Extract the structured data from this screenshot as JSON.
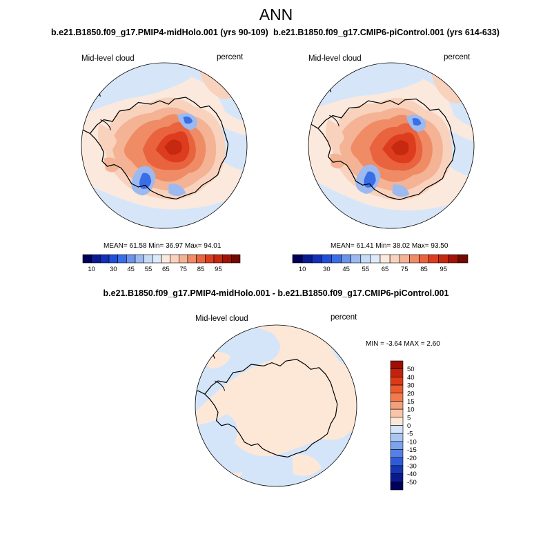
{
  "figure": {
    "title": "ANN",
    "panels": [
      {
        "case": "b.e21.B1850.f09_g17.PMIP4-midHolo.001 (yrs 90-109)",
        "variable": "Mid-level cloud",
        "units": "percent",
        "stats": {
          "mean_label": "MEAN=",
          "mean": "61.58",
          "min_label": "Min=",
          "min": "36.97",
          "max_label": "Max=",
          "max": "94.01"
        }
      },
      {
        "case": "b.e21.B1850.f09_g17.CMIP6-piControl.001 (yrs 614-633)",
        "variable": "Mid-level cloud",
        "units": "percent",
        "stats": {
          "mean_label": "MEAN=",
          "mean": "61.41",
          "min_label": "Min=",
          "min": "38.02",
          "max_label": "Max=",
          "max": "93.50"
        }
      }
    ],
    "difference": {
      "title": "b.e21.B1850.f09_g17.PMIP4-midHolo.001 - b.e21.B1850.f09_g17.CMIP6-piControl.001",
      "variable": "Mid-level cloud",
      "units": "percent",
      "stats": {
        "min_label": "MIN =",
        "min": "-3.64",
        "max_label": "MAX =",
        "max": "2.60"
      }
    }
  },
  "chart_data": [
    {
      "type": "heatmap",
      "projection": "south-polar stereographic",
      "title": "b.e21.B1850.f09_g17.PMIP4-midHolo.001 (yrs 90-109)",
      "variable": "Mid-level cloud",
      "units": "percent",
      "mean": 61.58,
      "min": 36.97,
      "max": 94.01,
      "colorbar": {
        "levels": [
          10,
          15,
          20,
          25,
          30,
          35,
          40,
          45,
          50,
          55,
          60,
          65,
          70,
          75,
          80,
          85,
          90,
          95
        ],
        "tick_labels": [
          "10",
          "30",
          "45",
          "55",
          "65",
          "75",
          "85",
          "95"
        ],
        "colors": [
          "#00005a",
          "#0a1a90",
          "#1530b8",
          "#2050d8",
          "#3a6ee6",
          "#6b93ea",
          "#9dbaf0",
          "#c8dbf6",
          "#ddeafa",
          "#fbe9dd",
          "#f8d2bd",
          "#f4b394",
          "#ef8c66",
          "#e8633e",
          "#dd3d1e",
          "#c62810",
          "#a31206",
          "#700a02"
        ]
      }
    },
    {
      "type": "heatmap",
      "projection": "south-polar stereographic",
      "title": "b.e21.B1850.f09_g17.CMIP6-piControl.001 (yrs 614-633)",
      "variable": "Mid-level cloud",
      "units": "percent",
      "mean": 61.41,
      "min": 38.02,
      "max": 93.5,
      "colorbar": {
        "levels": [
          10,
          15,
          20,
          25,
          30,
          35,
          40,
          45,
          50,
          55,
          60,
          65,
          70,
          75,
          80,
          85,
          90,
          95
        ],
        "tick_labels": [
          "10",
          "30",
          "45",
          "55",
          "65",
          "75",
          "85",
          "95"
        ],
        "colors": [
          "#00005a",
          "#0a1a90",
          "#1530b8",
          "#2050d8",
          "#3a6ee6",
          "#6b93ea",
          "#9dbaf0",
          "#c8dbf6",
          "#ddeafa",
          "#fbe9dd",
          "#f8d2bd",
          "#f4b394",
          "#ef8c66",
          "#e8633e",
          "#dd3d1e",
          "#c62810",
          "#a31206",
          "#700a02"
        ]
      }
    },
    {
      "type": "heatmap",
      "projection": "south-polar stereographic",
      "title": "b.e21.B1850.f09_g17.PMIP4-midHolo.001 - b.e21.B1850.f09_g17.CMIP6-piControl.001",
      "variable": "Mid-level cloud",
      "units": "percent",
      "min": -3.64,
      "max": 2.6,
      "colorbar": {
        "levels": [
          50,
          40,
          30,
          20,
          15,
          10,
          5,
          0,
          -5,
          -10,
          -15,
          -20,
          -30,
          -40,
          -50
        ],
        "tick_labels": [
          "50",
          "40",
          "30",
          "20",
          "15",
          "10",
          "5",
          "0",
          "-5",
          "-10",
          "-15",
          "-20",
          "-30",
          "-40",
          "-50"
        ],
        "colors": [
          "#9e0e05",
          "#c4220c",
          "#dd3a18",
          "#ec5a2e",
          "#f27b4e",
          "#f5a07c",
          "#f8c5a8",
          "#fde8d8",
          "#d4e5f9",
          "#a9c6f2",
          "#7ea3ec",
          "#5580e6",
          "#2f5ad8",
          "#1636b8",
          "#0a1a8c",
          "#00005a"
        ]
      }
    }
  ]
}
